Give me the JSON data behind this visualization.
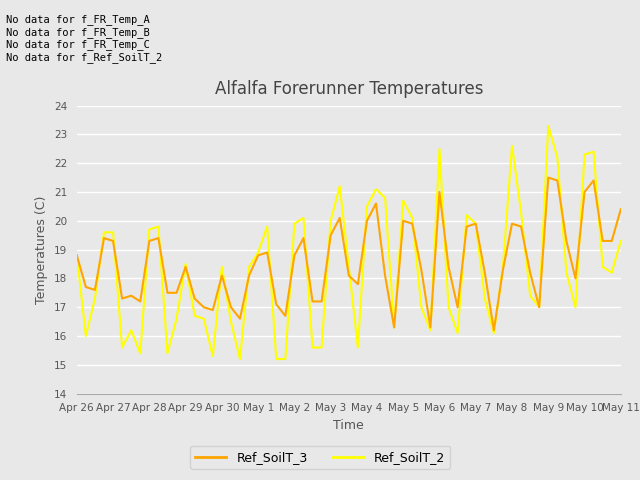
{
  "title": "Alfalfa Forerunner Temperatures",
  "xlabel": "Time",
  "ylabel": "Temperatures (C)",
  "ylim": [
    14.0,
    24.0
  ],
  "yticks": [
    14.0,
    15.0,
    16.0,
    17.0,
    18.0,
    19.0,
    20.0,
    21.0,
    22.0,
    23.0,
    24.0
  ],
  "bg_color": "#e8e8e8",
  "annotations": [
    "No data for f_FR_Temp_A",
    "No data for f_FR_Temp_B",
    "No data for f_FR_Temp_C",
    "No data for f_Ref_SoilT_2"
  ],
  "series": {
    "Ref_SoilT_3": {
      "color": "#FFA500",
      "linewidth": 1.5,
      "x": [
        0,
        0.25,
        0.5,
        0.75,
        1.0,
        1.25,
        1.5,
        1.75,
        2.0,
        2.25,
        2.5,
        2.75,
        3.0,
        3.25,
        3.5,
        3.75,
        4.0,
        4.25,
        4.5,
        4.75,
        5.0,
        5.25,
        5.5,
        5.75,
        6.0,
        6.25,
        6.5,
        6.75,
        7.0,
        7.25,
        7.5,
        7.75,
        8.0,
        8.25,
        8.5,
        8.75,
        9.0,
        9.25,
        9.5,
        9.75,
        10.0,
        10.25,
        10.5,
        10.75,
        11.0,
        11.25,
        11.5,
        11.75,
        12.0,
        12.25,
        12.5,
        12.75,
        13.0,
        13.25,
        13.5,
        13.75,
        14.0,
        14.25,
        14.5,
        14.75,
        15.0
      ],
      "y": [
        18.8,
        17.7,
        17.6,
        19.4,
        19.3,
        17.3,
        17.4,
        17.2,
        19.3,
        19.4,
        17.5,
        17.5,
        18.4,
        17.3,
        17.0,
        16.9,
        18.1,
        17.0,
        16.6,
        18.1,
        18.8,
        18.9,
        17.1,
        16.7,
        18.8,
        19.4,
        17.2,
        17.2,
        19.5,
        20.1,
        18.1,
        17.8,
        20.0,
        20.6,
        18.1,
        16.3,
        20.0,
        19.9,
        18.3,
        16.3,
        21.0,
        18.4,
        17.0,
        19.8,
        19.9,
        18.2,
        16.2,
        18.3,
        19.9,
        19.8,
        18.2,
        17.0,
        21.5,
        21.4,
        19.3,
        18.0,
        21.0,
        21.4,
        19.3,
        19.3,
        20.4
      ]
    },
    "Ref_SoilT_2": {
      "color": "#FFFF00",
      "linewidth": 1.5,
      "x": [
        0,
        0.25,
        0.5,
        0.75,
        1.0,
        1.25,
        1.5,
        1.75,
        2.0,
        2.25,
        2.5,
        2.75,
        3.0,
        3.25,
        3.5,
        3.75,
        4.0,
        4.25,
        4.5,
        4.75,
        5.0,
        5.25,
        5.5,
        5.75,
        6.0,
        6.25,
        6.5,
        6.75,
        7.0,
        7.25,
        7.5,
        7.75,
        8.0,
        8.25,
        8.5,
        8.75,
        9.0,
        9.25,
        9.5,
        9.75,
        10.0,
        10.25,
        10.5,
        10.75,
        11.0,
        11.25,
        11.5,
        11.75,
        12.0,
        12.25,
        12.5,
        12.75,
        13.0,
        13.25,
        13.5,
        13.75,
        14.0,
        14.25,
        14.5,
        14.75,
        15.0
      ],
      "y": [
        18.8,
        16.0,
        17.3,
        19.6,
        19.6,
        15.6,
        16.2,
        15.4,
        19.7,
        19.8,
        15.4,
        16.6,
        18.5,
        16.7,
        16.6,
        15.3,
        18.4,
        16.5,
        15.2,
        18.4,
        18.9,
        19.8,
        15.2,
        15.2,
        19.9,
        20.1,
        15.6,
        15.6,
        20.0,
        21.2,
        18.4,
        15.6,
        20.5,
        21.1,
        20.8,
        16.3,
        20.7,
        20.1,
        17.0,
        16.2,
        22.5,
        17.0,
        16.1,
        20.2,
        19.9,
        17.3,
        16.1,
        18.4,
        22.6,
        20.3,
        17.4,
        17.0,
        23.3,
        22.2,
        18.2,
        17.0,
        22.3,
        22.4,
        18.4,
        18.2,
        19.3
      ]
    }
  },
  "xtick_positions": [
    0,
    1,
    2,
    3,
    4,
    5,
    6,
    7,
    8,
    9,
    10,
    11,
    12,
    13,
    14,
    15
  ],
  "xtick_labels": [
    "Apr 26",
    "Apr 27",
    "Apr 28",
    "Apr 29",
    "Apr 30",
    "May 1",
    "May 2",
    "May 3",
    "May 4",
    "May 5",
    "May 6",
    "May 7",
    "May 8",
    "May 9",
    "May 10",
    "May 11"
  ]
}
